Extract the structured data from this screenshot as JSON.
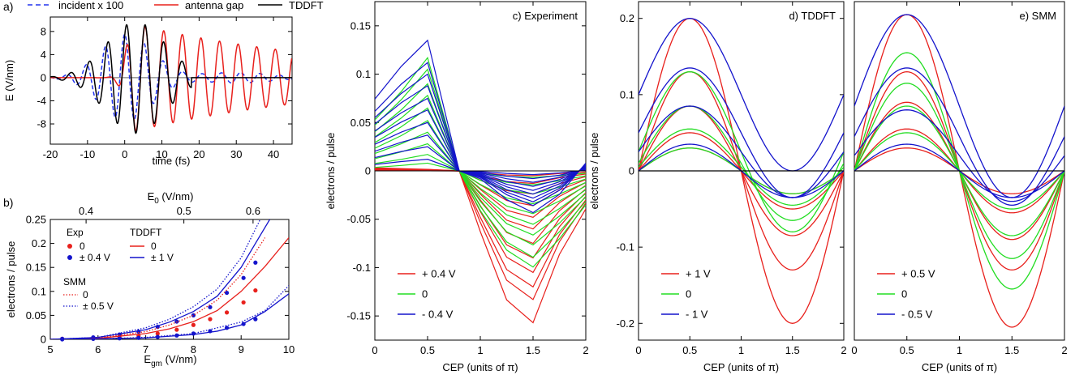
{
  "colors": {
    "red": "#e8201c",
    "green": "#22dd22",
    "blue": "#1414cc",
    "black": "#000000",
    "dashblue": "#2233ee"
  },
  "chart_data": [
    {
      "id": "a",
      "type": "line",
      "panel_label": "a)",
      "xlabel": "time (fs)",
      "ylabel": "E (V/nm)",
      "xlim": [
        -20,
        45
      ],
      "ylim": [
        -11.5,
        10.5
      ],
      "xticks": [
        -20,
        -10,
        0,
        10,
        20,
        30,
        40
      ],
      "yticks": [
        -8,
        -4,
        0,
        4,
        8
      ],
      "legend_position": "top",
      "series": [
        {
          "name": "incident x 100",
          "style": "dashed",
          "color": "dashblue",
          "model": {
            "A": 7.5,
            "t0": 0.5,
            "sigma": 11,
            "period": 5.2,
            "phase": 0.6
          }
        },
        {
          "name": "antenna gap",
          "style": "solid",
          "color": "red",
          "model": {
            "A": 9.2,
            "t0": 3.0,
            "sigma": 22,
            "period": 5.0,
            "phase": 3.14,
            "end": 45
          }
        },
        {
          "name": "TDDFT",
          "style": "solid",
          "color": "black",
          "model": {
            "A": 9.6,
            "t0": 3.0,
            "sigma": 7,
            "period": 5.0,
            "phase": 3.14,
            "end": 18
          }
        }
      ]
    },
    {
      "id": "b",
      "type": "scatter",
      "panel_label": "b)",
      "xlabel": "E",
      "xlabel_sub": "gm",
      "xlabel_unit": " (V/nm)",
      "ylabel": "electrons / pulse",
      "top_xlabel": "E",
      "top_xlabel_sub": "0",
      "top_xlabel_unit": " (V/nm)",
      "xlim": [
        5,
        10
      ],
      "ylim": [
        0,
        0.25
      ],
      "xticks": [
        5,
        6,
        7,
        8,
        9,
        10
      ],
      "yticks": [
        0,
        0.05,
        0.1,
        0.15,
        0.2,
        0.25
      ],
      "top_xticks": [
        {
          "label": "0.4",
          "x": 5.75
        },
        {
          "label": "0.5",
          "x": 7.8
        },
        {
          "label": "0.6",
          "x": 9.25
        }
      ],
      "legend": {
        "exp_title": "Exp",
        "exp_items": [
          "0",
          "± 0.4 V"
        ],
        "tddft_title": "TDDFT",
        "tddft_items": [
          "0",
          "± 1 V"
        ],
        "smm_title": "SMM",
        "smm_items": [
          "0",
          "± 0.5 V"
        ]
      },
      "series": [
        {
          "name": "Exp 0",
          "kind": "points",
          "color": "red",
          "x": [
            5.25,
            5.9,
            6.45,
            6.85,
            7.25,
            7.65,
            8.0,
            8.35,
            8.7,
            9.05,
            9.3
          ],
          "y": [
            0.001,
            0.002,
            0.004,
            0.007,
            0.012,
            0.02,
            0.03,
            0.042,
            0.056,
            0.077,
            0.102
          ]
        },
        {
          "name": "Exp ±0.4 V high",
          "kind": "points",
          "color": "blue",
          "x": [
            5.25,
            5.9,
            6.45,
            6.85,
            7.25,
            7.65,
            8.0,
            8.35,
            8.7,
            9.05,
            9.3
          ],
          "y": [
            0.001,
            0.004,
            0.01,
            0.016,
            0.026,
            0.037,
            0.05,
            0.067,
            0.097,
            0.128,
            0.16
          ]
        },
        {
          "name": "Exp ±0.4 V low",
          "kind": "points",
          "color": "blue",
          "x": [
            5.25,
            5.9,
            6.45,
            6.85,
            7.25,
            7.65,
            8.0,
            8.35,
            8.7,
            9.05,
            9.3
          ],
          "y": [
            0.0,
            0.001,
            0.002,
            0.003,
            0.005,
            0.008,
            0.012,
            0.017,
            0.024,
            0.032,
            0.042
          ]
        },
        {
          "name": "TDDFT 0",
          "kind": "line",
          "color": "red",
          "x": [
            5,
            6,
            7,
            7.5,
            8,
            8.5,
            9,
            9.5,
            10
          ],
          "y": [
            0,
            0.002,
            0.012,
            0.022,
            0.037,
            0.06,
            0.1,
            0.152,
            0.212
          ]
        },
        {
          "name": "TDDFT ±1 V high",
          "kind": "line",
          "color": "blue",
          "x": [
            5,
            6,
            7,
            7.5,
            8,
            8.5,
            9,
            9.3,
            9.6
          ],
          "y": [
            0,
            0.004,
            0.02,
            0.036,
            0.058,
            0.09,
            0.15,
            0.2,
            0.25
          ]
        },
        {
          "name": "TDDFT ±1 V low",
          "kind": "line",
          "color": "blue",
          "x": [
            5,
            6,
            7,
            8,
            8.5,
            9,
            9.5,
            10
          ],
          "y": [
            0,
            0.001,
            0.003,
            0.01,
            0.017,
            0.03,
            0.058,
            0.095
          ]
        },
        {
          "name": "SMM 0",
          "kind": "dotted",
          "color": "red",
          "x": [
            5,
            6,
            7,
            7.5,
            8,
            8.5,
            9,
            9.5
          ],
          "y": [
            0,
            0.003,
            0.016,
            0.03,
            0.05,
            0.082,
            0.135,
            0.212
          ]
        },
        {
          "name": "SMM ±0.5 V high",
          "kind": "dotted",
          "color": "blue",
          "x": [
            5,
            6,
            7,
            7.5,
            8,
            8.5,
            9,
            9.4
          ],
          "y": [
            0,
            0.004,
            0.024,
            0.042,
            0.068,
            0.105,
            0.17,
            0.25
          ]
        },
        {
          "name": "SMM ±0.5 V low",
          "kind": "dotted",
          "color": "blue",
          "x": [
            5,
            6,
            7,
            8,
            9,
            9.5,
            10
          ],
          "y": [
            0,
            0.001,
            0.004,
            0.012,
            0.036,
            0.06,
            0.112
          ]
        }
      ]
    },
    {
      "id": "c",
      "type": "line",
      "title": "c)  Experiment",
      "xlabel": "CEP (units of π)",
      "ylabel": "electrons / pulse",
      "xlim": [
        0,
        2
      ],
      "ylim": [
        -0.175,
        0.175
      ],
      "xticks": [
        0,
        0.5,
        1,
        1.5,
        2
      ],
      "yticks": [
        -0.15,
        -0.1,
        -0.05,
        0,
        0.05,
        0.1,
        0.15
      ],
      "legend_position": "bottom-left",
      "legend": [
        {
          "label": "+ 0.4 V",
          "color": "red"
        },
        {
          "label": "0",
          "color": "green"
        },
        {
          "label": "- 0.4 V",
          "color": "blue"
        }
      ],
      "x": [
        0,
        0.25,
        0.5,
        0.8,
        1.0,
        1.25,
        1.5,
        1.75,
        2.0
      ],
      "shape": {
        "red": [
          0.02,
          0.015,
          0.01,
          0.0,
          -0.4,
          -0.85,
          -1.0,
          -0.55,
          -0.25
        ],
        "green": [
          0.45,
          0.7,
          1.0,
          0.0,
          -0.35,
          -0.7,
          -0.85,
          -0.6,
          -0.3
        ],
        "blue": [
          0.55,
          0.8,
          1.0,
          0.0,
          -0.06,
          -0.22,
          -0.32,
          -0.18,
          0.06
        ]
      },
      "amplitudes": {
        "red": [
          -0.157,
          -0.133,
          -0.12,
          -0.105,
          -0.09,
          -0.075,
          -0.06,
          -0.048,
          -0.036,
          -0.024,
          -0.013,
          -0.005
        ],
        "green": [
          0.117,
          0.105,
          0.09,
          0.078,
          0.065,
          0.052,
          0.04,
          0.028,
          0.017,
          0.008
        ],
        "blue": [
          0.135,
          0.112,
          0.1,
          0.088,
          0.075,
          0.063,
          0.05,
          0.037,
          0.025,
          0.012
        ]
      }
    },
    {
      "id": "d",
      "type": "line",
      "title": "d)  TDDFT",
      "xlabel": "CEP (units of π)",
      "ylabel": "electrons / pulse",
      "xlim": [
        0,
        2
      ],
      "ylim": [
        -0.222,
        0.222
      ],
      "xticks": [
        0,
        0.5,
        1,
        1.5,
        2
      ],
      "yticks": [
        -0.2,
        -0.1,
        0,
        0.1,
        0.2
      ],
      "legend_position": "bottom-left",
      "legend": [
        {
          "label": "+ 1 V",
          "color": "red"
        },
        {
          "label": "0",
          "color": "green"
        },
        {
          "label": "- 1 V",
          "color": "blue"
        }
      ],
      "curves": [
        {
          "color": "red",
          "amp": 0.2,
          "offset": 0.0,
          "zero": 0.12
        },
        {
          "color": "red",
          "amp": 0.13,
          "offset": 0.0,
          "zero": 0.12
        },
        {
          "color": "red",
          "amp": 0.085,
          "offset": 0.0,
          "zero": 0.12
        },
        {
          "color": "red",
          "amp": 0.05,
          "offset": 0.0,
          "zero": 0.12
        },
        {
          "color": "red",
          "amp": 0.03,
          "offset": 0.0,
          "zero": 0.12
        },
        {
          "color": "green",
          "amp": 0.105,
          "offset": 0.025,
          "zero": 0.1
        },
        {
          "color": "green",
          "amp": 0.075,
          "offset": 0.01,
          "zero": 0.1
        },
        {
          "color": "green",
          "amp": 0.05,
          "offset": 0.005,
          "zero": 0.1
        },
        {
          "color": "green",
          "amp": 0.03,
          "offset": 0.0,
          "zero": 0.1
        },
        {
          "color": "blue",
          "amp": 0.1,
          "offset": 0.1,
          "zero": 0.2
        },
        {
          "color": "blue",
          "amp": 0.085,
          "offset": 0.05,
          "zero": 0.2
        },
        {
          "color": "blue",
          "amp": 0.06,
          "offset": 0.025,
          "zero": 0.2
        },
        {
          "color": "blue",
          "amp": 0.035,
          "offset": 0.0,
          "zero": 0.2
        },
        {
          "color": "black",
          "amp": 0.0,
          "offset": 0.0,
          "zero": 0.0
        }
      ]
    },
    {
      "id": "e",
      "type": "line",
      "title": "e)  SMM",
      "xlabel": "CEP (units of π)",
      "ylabel": "",
      "xlim": [
        0,
        2
      ],
      "ylim": [
        -0.222,
        0.222
      ],
      "xticks": [
        0,
        0.5,
        1,
        1.5,
        2
      ],
      "yticks": [],
      "legend_position": "bottom-left",
      "legend": [
        {
          "label": "+ 0.5 V",
          "color": "red"
        },
        {
          "label": "0",
          "color": "green"
        },
        {
          "label": "- 0.5 V",
          "color": "blue"
        }
      ],
      "curves": [
        {
          "color": "red",
          "amp": 0.205,
          "offset": 0.0,
          "zero": 0.1
        },
        {
          "color": "red",
          "amp": 0.13,
          "offset": 0.0,
          "zero": 0.1
        },
        {
          "color": "red",
          "amp": 0.09,
          "offset": 0.0,
          "zero": 0.1
        },
        {
          "color": "red",
          "amp": 0.055,
          "offset": 0.0,
          "zero": 0.1
        },
        {
          "color": "red",
          "amp": 0.03,
          "offset": 0.0,
          "zero": 0.1
        },
        {
          "color": "green",
          "amp": 0.155,
          "offset": 0.0,
          "zero": 0.1
        },
        {
          "color": "green",
          "amp": 0.115,
          "offset": 0.0,
          "zero": 0.1
        },
        {
          "color": "green",
          "amp": 0.085,
          "offset": 0.0,
          "zero": 0.1
        },
        {
          "color": "green",
          "amp": 0.05,
          "offset": 0.0,
          "zero": 0.1
        },
        {
          "color": "blue",
          "amp": 0.12,
          "offset": 0.085,
          "zero": 0.2
        },
        {
          "color": "blue",
          "amp": 0.09,
          "offset": 0.045,
          "zero": 0.2
        },
        {
          "color": "blue",
          "amp": 0.06,
          "offset": 0.02,
          "zero": 0.2
        },
        {
          "color": "blue",
          "amp": 0.035,
          "offset": 0.0,
          "zero": 0.2
        },
        {
          "color": "black",
          "amp": 0.0,
          "offset": 0.0,
          "zero": 0.0
        }
      ]
    }
  ]
}
